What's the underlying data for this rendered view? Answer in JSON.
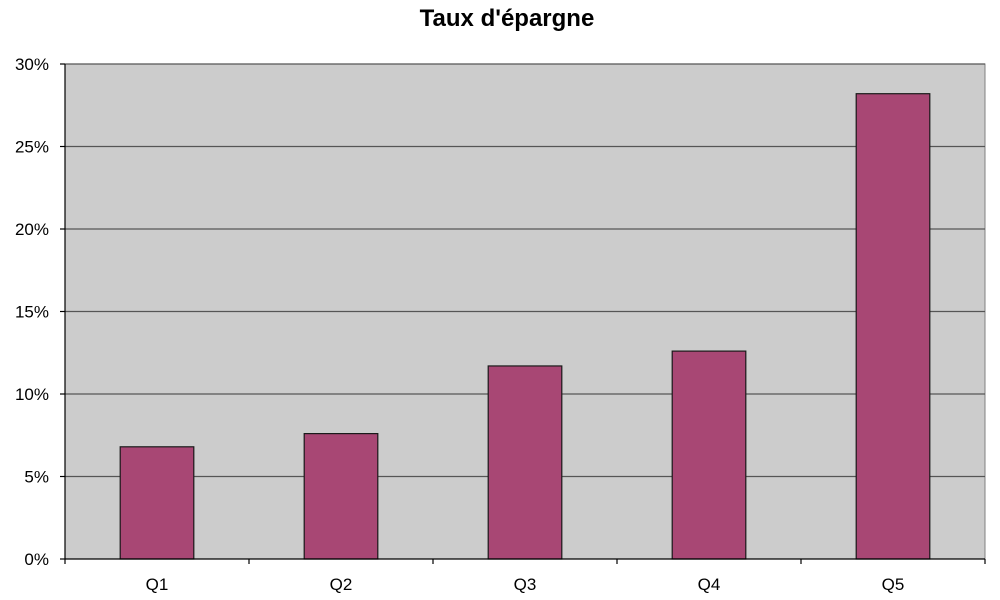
{
  "chart_data": {
    "type": "bar",
    "title": "Taux d'épargne",
    "xlabel": "",
    "ylabel": "",
    "categories": [
      "Q1",
      "Q2",
      "Q3",
      "Q4",
      "Q5"
    ],
    "values": [
      6.8,
      7.6,
      11.7,
      12.6,
      28.2
    ],
    "ylim": [
      0,
      30
    ],
    "yticks": [
      0,
      5,
      10,
      15,
      20,
      25,
      30
    ],
    "ytick_labels": [
      "0%",
      "5%",
      "10%",
      "15%",
      "20%",
      "25%",
      "30%"
    ],
    "grid": true,
    "legend": "none",
    "colors": {
      "bar": "#A84774",
      "bar_edge": "#1a1a1a",
      "plot_background": "#CCCCCC",
      "gridline": "#555555"
    }
  }
}
